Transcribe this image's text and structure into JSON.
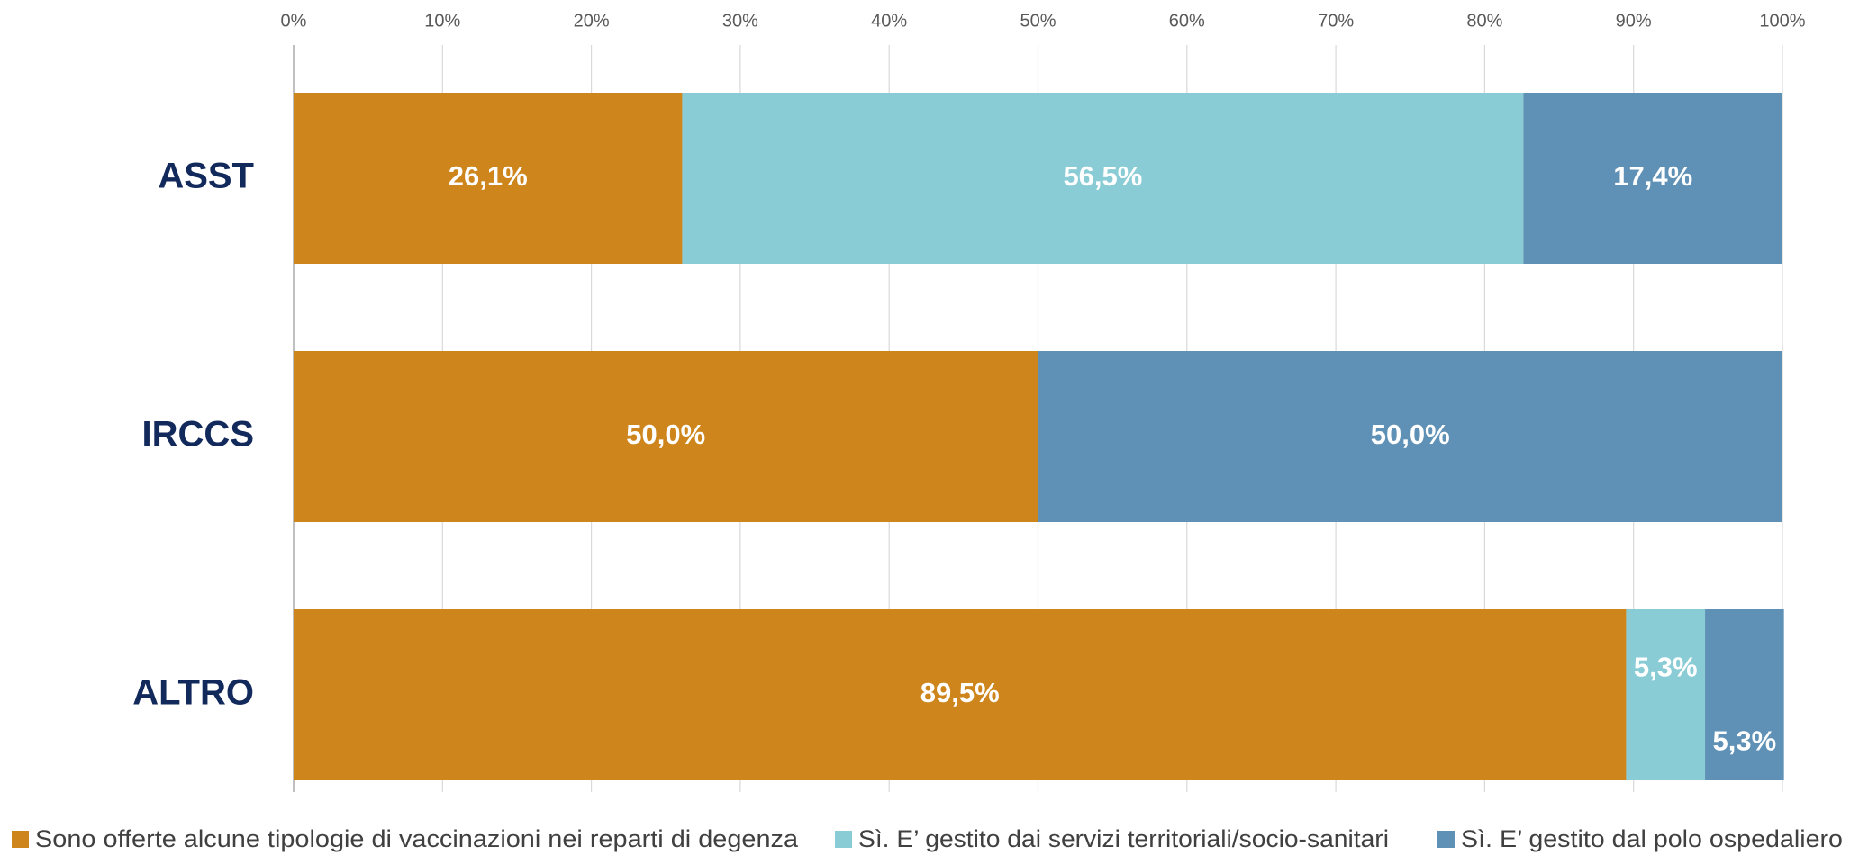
{
  "chart_data": {
    "type": "stacked-bar-horizontal",
    "categories": [
      "ASST",
      "IRCCS",
      "ALTRO"
    ],
    "xlim": [
      0,
      100
    ],
    "xticks": [
      {
        "value": 0,
        "label": "0%"
      },
      {
        "value": 10,
        "label": "10%"
      },
      {
        "value": 20,
        "label": "20%"
      },
      {
        "value": 30,
        "label": "30%"
      },
      {
        "value": 40,
        "label": "40%"
      },
      {
        "value": 50,
        "label": "50%"
      },
      {
        "value": 60,
        "label": "60%"
      },
      {
        "value": 70,
        "label": "70%"
      },
      {
        "value": 80,
        "label": "80%"
      },
      {
        "value": 90,
        "label": "90%"
      },
      {
        "value": 100,
        "label": "100%"
      }
    ],
    "grid": true,
    "legend": "bottom",
    "series": [
      {
        "name": "Sono offerte alcune tipologie di vaccinazioni nei reparti di degenza",
        "color": "#CD851C",
        "values": [
          26.1,
          50.0,
          89.5
        ],
        "value_labels": [
          "26,1%",
          "50,0%",
          "89,5%"
        ]
      },
      {
        "name": "Sì. E’ gestito dai servizi territoriali/socio-sanitari",
        "color": "#8ACCD5",
        "values": [
          56.5,
          null,
          5.3
        ],
        "value_labels": [
          "56,5%",
          null,
          "5,3%"
        ]
      },
      {
        "name": "Sì. E’ gestito dal polo ospedaliero",
        "color": "#5F90B5",
        "values": [
          17.4,
          50.0,
          5.3
        ],
        "value_labels": [
          "17,4%",
          "50,0%",
          "5,3%"
        ]
      }
    ]
  }
}
